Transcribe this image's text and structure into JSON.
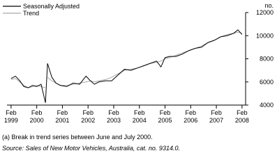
{
  "chart_data": {
    "type": "line",
    "y_unit": "no.",
    "footnote": "(a) Break in trend series between June and July 2000.",
    "source": "Source: Sales of New Motor Vehicles, Australia, cat. no. 9314.0.",
    "xlim": [
      1998.92,
      2008.22
    ],
    "xticks": [
      {
        "value": 1999.08,
        "label": "Feb 1999"
      },
      {
        "value": 2000.08,
        "label": "Feb 2000"
      },
      {
        "value": 2001.08,
        "label": "Feb 2001"
      },
      {
        "value": 2002.08,
        "label": "Feb 2002"
      },
      {
        "value": 2003.08,
        "label": "Feb 2003"
      },
      {
        "value": 2004.08,
        "label": "Feb 2004"
      },
      {
        "value": 2005.08,
        "label": "Feb 2005"
      },
      {
        "value": 2006.08,
        "label": "Feb 2006"
      },
      {
        "value": 2007.08,
        "label": "Feb 2007"
      },
      {
        "value": 2008.08,
        "label": "Feb 2008"
      }
    ],
    "ylim": [
      4000,
      12000
    ],
    "yticks": [
      4000,
      6000,
      8000,
      10000,
      12000
    ],
    "series": [
      {
        "name": "Seasonally Adjusted",
        "color": "#000000",
        "x": [
          1999.08,
          1999.25,
          1999.42,
          1999.58,
          1999.75,
          1999.92,
          2000.08,
          2000.25,
          2000.42,
          2000.5,
          2000.67,
          2000.83,
          2001.0,
          2001.25,
          2001.5,
          2001.75,
          2002.0,
          2002.17,
          2002.33,
          2002.5,
          2002.75,
          2003.0,
          2003.25,
          2003.5,
          2003.75,
          2004.0,
          2004.25,
          2004.5,
          2004.75,
          2004.92,
          2005.08,
          2005.25,
          2005.5,
          2005.75,
          2006.0,
          2006.25,
          2006.5,
          2006.75,
          2007.0,
          2007.25,
          2007.5,
          2007.75,
          2007.92,
          2008.08
        ],
        "values": [
          6300,
          6500,
          6100,
          5600,
          5500,
          5700,
          5600,
          5800,
          4200,
          7600,
          6400,
          5900,
          5700,
          5600,
          5900,
          5800,
          6500,
          6100,
          5800,
          6000,
          6100,
          6100,
          6600,
          7100,
          7000,
          7200,
          7400,
          7600,
          7800,
          7300,
          8100,
          8200,
          8200,
          8400,
          8700,
          8900,
          9000,
          9400,
          9600,
          9900,
          10000,
          10200,
          10500,
          10100
        ]
      },
      {
        "name": "Trend",
        "color": "#a6a6a6",
        "x": [
          1999.08,
          1999.25,
          1999.42,
          1999.58,
          1999.75,
          1999.92,
          2000.08,
          2000.25,
          2000.42,
          null,
          2000.5,
          2000.67,
          2000.83,
          2001.0,
          2001.25,
          2001.5,
          2001.75,
          2002.0,
          2002.17,
          2002.33,
          2002.5,
          2002.75,
          2003.0,
          2003.25,
          2003.5,
          2003.75,
          2004.0,
          2004.25,
          2004.5,
          2004.75,
          2004.92,
          2005.08,
          2005.25,
          2005.5,
          2005.75,
          2006.0,
          2006.25,
          2006.5,
          2006.75,
          2007.0,
          2007.25,
          2007.5,
          2007.75,
          2007.92,
          2008.08
        ],
        "values": [
          6200,
          6300,
          6000,
          5700,
          5500,
          5600,
          5700,
          5600,
          5500,
          null,
          6400,
          6100,
          5900,
          5700,
          5700,
          5800,
          5900,
          6000,
          6100,
          6000,
          6100,
          6200,
          6400,
          6700,
          7000,
          7100,
          7200,
          7400,
          7600,
          7700,
          7800,
          8000,
          8100,
          8300,
          8500,
          8700,
          8900,
          9100,
          9400,
          9600,
          9900,
          10100,
          10200,
          10300,
          10200
        ]
      }
    ]
  }
}
